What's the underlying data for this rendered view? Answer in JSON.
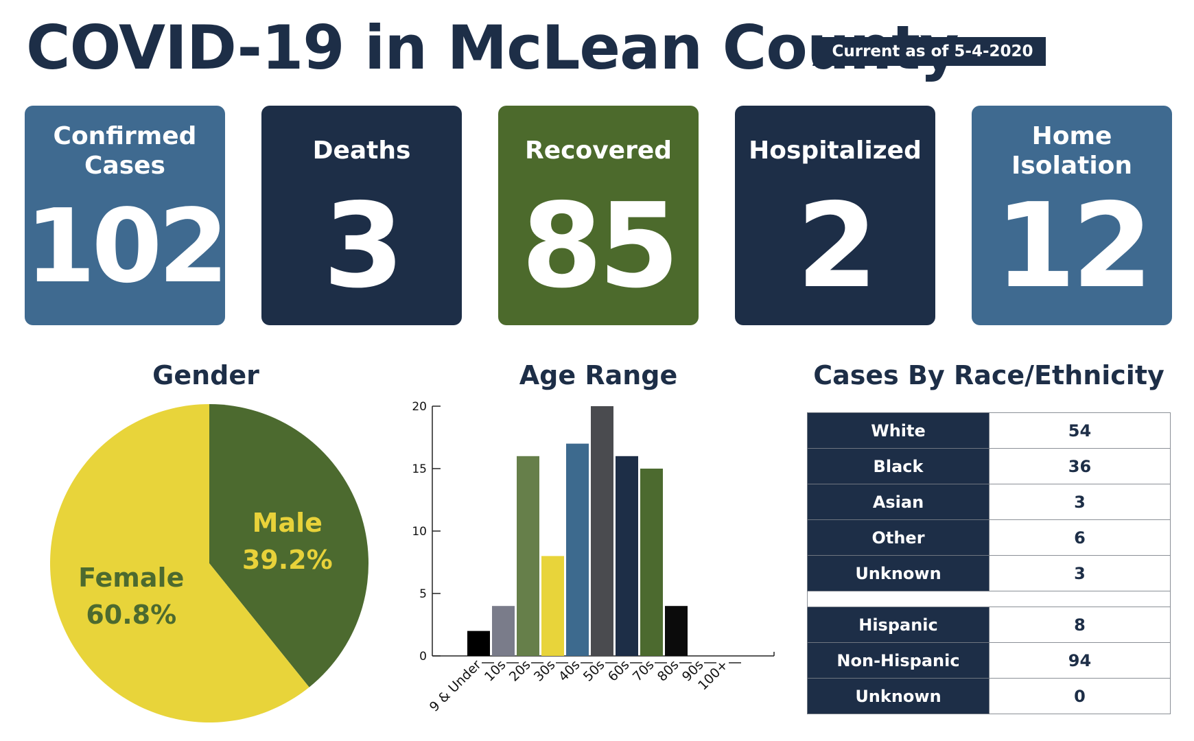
{
  "header": {
    "title": "COVID-19 in McLean County",
    "as_of": "Current as of 5-4-2020"
  },
  "stats": [
    {
      "label": "Confirmed Cases",
      "value": "102",
      "color": "#3f6a90"
    },
    {
      "label": "Deaths",
      "value": "3",
      "color": "#1d2e47"
    },
    {
      "label": "Recovered",
      "value": "85",
      "color": "#4c6a2c"
    },
    {
      "label": "Hospitalized",
      "value": "2",
      "color": "#1d2e47"
    },
    {
      "label": "Home Isolation",
      "value": "12",
      "color": "#3f6a90"
    }
  ],
  "sections": {
    "gender_title": "Gender",
    "age_title": "Age Range",
    "race_title": "Cases By Race/Ethnicity"
  },
  "race": {
    "rows": [
      {
        "label": "White",
        "value": "54"
      },
      {
        "label": "Black",
        "value": "36"
      },
      {
        "label": "Asian",
        "value": "3"
      },
      {
        "label": "Other",
        "value": "6"
      },
      {
        "label": "Unknown",
        "value": "3"
      }
    ],
    "ethnicity_rows": [
      {
        "label": "Hispanic",
        "value": "8"
      },
      {
        "label": "Non-Hispanic",
        "value": "94"
      },
      {
        "label": "Unknown",
        "value": "0"
      }
    ]
  },
  "chart_data": [
    {
      "type": "pie",
      "title": "Gender",
      "slices": [
        {
          "label": "Male",
          "value": 39.2,
          "value_label": "39.2%",
          "color": "#4c6a2f",
          "text_color": "#e8d23a"
        },
        {
          "label": "Female",
          "value": 60.8,
          "value_label": "60.8%",
          "color": "#e8d43a",
          "text_color": "#4c6a2f"
        }
      ]
    },
    {
      "type": "bar",
      "title": "Age Range",
      "categories": [
        "9 & Under",
        "10s",
        "20s",
        "30s",
        "40s",
        "50s",
        "60s",
        "70s",
        "80s",
        "90s",
        "100+"
      ],
      "values": [
        2,
        4,
        16,
        8,
        17,
        20,
        16,
        15,
        4,
        0,
        0
      ],
      "colors": [
        "#000000",
        "#7a7c8a",
        "#667f4a",
        "#e8d43a",
        "#3d6a8e",
        "#4a4b4f",
        "#1d2e47",
        "#4c6a2f",
        "#0b0b0b",
        "#000000",
        "#000000"
      ],
      "ylim": [
        0,
        20
      ],
      "yticks": [
        0,
        5,
        10,
        15,
        20
      ],
      "grid": false
    }
  ]
}
